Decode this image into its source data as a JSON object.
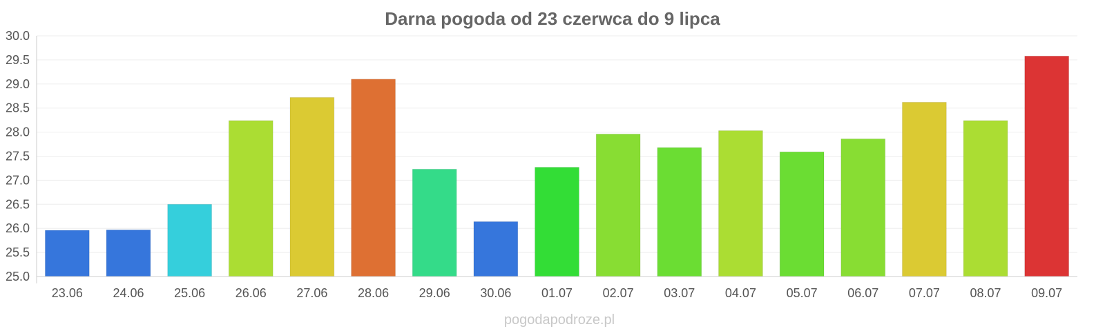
{
  "chart_data": {
    "type": "bar",
    "title": "Darna pogoda od 23 czerwca do 9 lipca",
    "xlabel": "",
    "ylabel": "",
    "ylim": [
      25.0,
      30.0
    ],
    "yticks": [
      "25.0",
      "25.5",
      "26.0",
      "26.5",
      "27.0",
      "27.5",
      "28.0",
      "28.5",
      "29.0",
      "29.5",
      "30.0"
    ],
    "grid": true,
    "legend": "none",
    "categories": [
      "23.06",
      "24.06",
      "25.06",
      "26.06",
      "27.06",
      "28.06",
      "29.06",
      "30.06",
      "01.07",
      "02.07",
      "03.07",
      "04.07",
      "05.07",
      "06.07",
      "07.07",
      "08.07",
      "09.07"
    ],
    "values": [
      25.96,
      25.97,
      26.5,
      28.24,
      28.72,
      29.1,
      27.23,
      26.14,
      27.27,
      27.96,
      27.68,
      28.03,
      27.59,
      27.86,
      28.62,
      28.24,
      29.58
    ],
    "colors": [
      "#3676dc",
      "#3676dc",
      "#35cfdc",
      "#abdd33",
      "#dbca33",
      "#de7033",
      "#34db89",
      "#3676dc",
      "#33dd36",
      "#88dd33",
      "#6bdd33",
      "#abdd33",
      "#6bdd33",
      "#88dd33",
      "#dbca33",
      "#abdd33",
      "#dc3434"
    ]
  },
  "watermark": "pogodapodroze.pl"
}
